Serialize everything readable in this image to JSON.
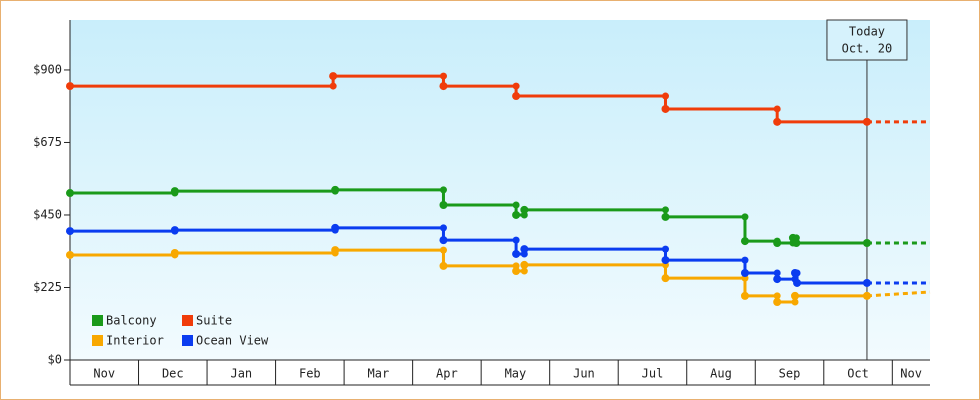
{
  "chart_data": {
    "type": "step-line",
    "categories": [
      "Nov",
      "Dec",
      "Jan",
      "Feb",
      "Mar",
      "Apr",
      "May",
      "Jun",
      "Jul",
      "Aug",
      "Sep",
      "Oct",
      "Nov"
    ],
    "xlim": [
      0,
      12.55
    ],
    "ylim": [
      0,
      1055
    ],
    "yticks": [
      {
        "value": 0,
        "label": "$0"
      },
      {
        "value": 225,
        "label": "$225"
      },
      {
        "value": 450,
        "label": "$450"
      },
      {
        "value": 675,
        "label": "$675"
      },
      {
        "value": 900,
        "label": "$900"
      }
    ],
    "legend": "bottom-left",
    "annotation": {
      "x": 11.63,
      "lines": [
        "Today",
        "Oct. 20"
      ]
    },
    "series": [
      {
        "name": "Balcony",
        "color": "#1a9a1a",
        "x": [
          0,
          1.53,
          3.87,
          5.45,
          6.51,
          6.63,
          8.69,
          9.85,
          10.32,
          10.55,
          10.6,
          11.63,
          12.55
        ],
        "values": [
          518,
          524,
          528,
          481,
          450,
          466,
          444,
          369,
          363,
          379,
          363,
          363,
          363
        ]
      },
      {
        "name": "Suite",
        "color": "#f03c0a",
        "x": [
          0,
          3.84,
          5.45,
          6.51,
          8.69,
          10.32,
          11.63,
          12.55
        ],
        "values": [
          850,
          881,
          850,
          819,
          779,
          739,
          739,
          739
        ]
      },
      {
        "name": "Interior",
        "color": "#f8a800",
        "x": [
          0,
          1.53,
          3.87,
          5.45,
          6.51,
          6.63,
          8.69,
          9.85,
          10.32,
          10.58,
          11.63,
          12.55
        ],
        "values": [
          326,
          332,
          341,
          292,
          276,
          295,
          254,
          199,
          180,
          199,
          199,
          211
        ]
      },
      {
        "name": "Ocean View",
        "color": "#0a3cf0",
        "x": [
          0,
          1.53,
          3.87,
          5.45,
          6.51,
          6.63,
          8.69,
          9.85,
          10.32,
          10.58,
          10.61,
          11.63,
          12.55
        ],
        "values": [
          400,
          403,
          410,
          372,
          329,
          344,
          310,
          270,
          251,
          270,
          239,
          239,
          239
        ]
      }
    ]
  }
}
